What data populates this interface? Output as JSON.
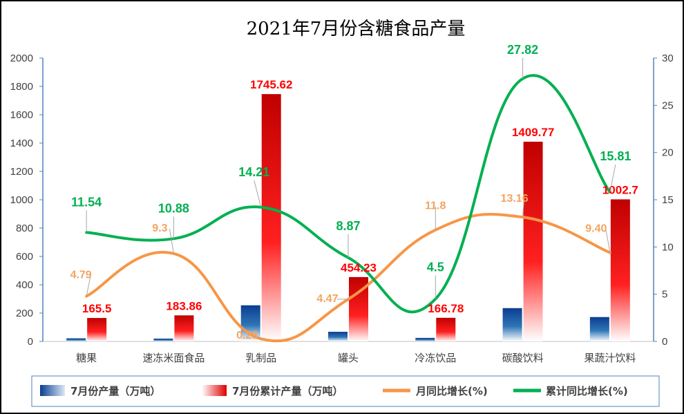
{
  "chart_data": {
    "type": "bar+line",
    "title": "2021年7月份含糖食品产量",
    "categories": [
      "糖果",
      "速冻米面食品",
      "乳制品",
      "罐头",
      "冷冻饮品",
      "碳酸饮料",
      "果蔬汁饮料"
    ],
    "left_axis": {
      "min": 0,
      "max": 2000,
      "step": 200,
      "ticks": [
        "0",
        "200",
        "400",
        "600",
        "800",
        "1000",
        "1200",
        "1400",
        "1600",
        "1800",
        "2000"
      ]
    },
    "right_axis": {
      "min": 0,
      "max": 30,
      "step": 5,
      "ticks": [
        "0",
        "5",
        "10",
        "15",
        "20",
        "25",
        "30"
      ]
    },
    "series": [
      {
        "name": "7月份产量（万吨）",
        "axis": "left",
        "kind": "bar",
        "values": [
          22,
          20,
          255,
          68,
          25,
          235,
          172
        ]
      },
      {
        "name": "7月份累计产量（万吨）",
        "axis": "left",
        "kind": "bar",
        "values": [
          165.5,
          183.86,
          1745.62,
          454.23,
          166.78,
          1409.77,
          1002.7
        ],
        "labels": [
          "165.5",
          "183.86",
          "1745.62",
          "454.23",
          "166.78",
          "1409.77",
          "1002.7"
        ]
      },
      {
        "name": "月同比增长(%)",
        "axis": "right",
        "kind": "line",
        "values": [
          4.79,
          9.3,
          0.28,
          4.47,
          11.8,
          13.16,
          9.4
        ],
        "labels": [
          "4.79",
          "9.3",
          "0.28",
          "4.47",
          "11.8",
          "13.16",
          "9.40"
        ]
      },
      {
        "name": "累计同比增长(%)",
        "axis": "right",
        "kind": "line",
        "values": [
          11.54,
          10.88,
          14.21,
          8.87,
          4.5,
          27.82,
          15.81
        ],
        "labels": [
          "11.54",
          "10.88",
          "14.21",
          "8.87",
          "4.5",
          "27.82",
          "15.81"
        ]
      }
    ],
    "colors": {
      "bar1": "#0a4d99",
      "bar2": "#e00000",
      "line1": "#f79646",
      "line2": "#00b050",
      "axis": "#4f81bd"
    },
    "legend_position": "bottom"
  }
}
